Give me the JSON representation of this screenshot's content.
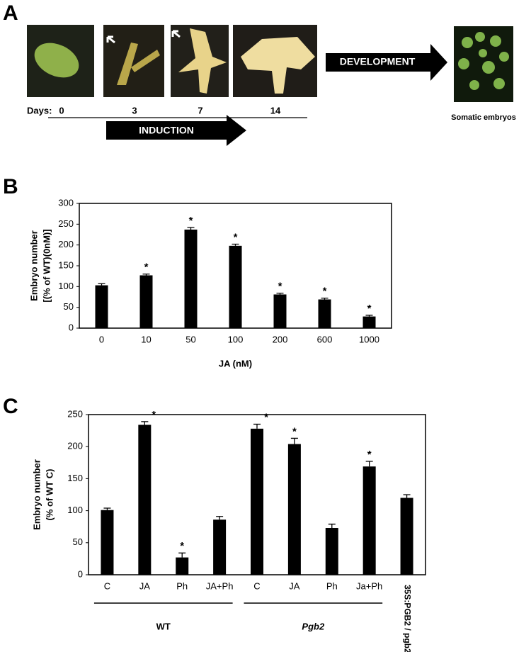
{
  "panel_a": {
    "panel_label": "A",
    "days_label": "Days:",
    "days": [
      "0",
      "3",
      "7",
      "14"
    ],
    "induction": "INDUCTION",
    "development": "DEVELOPMENT",
    "caption": "Somatic embryos"
  },
  "chart_data": [
    {
      "type": "bar",
      "panel_label": "B",
      "ylabel": [
        "Embryo number",
        "[(% of WT)(0nM)]"
      ],
      "xlabel": "JA (nM)",
      "categories": [
        "0",
        "10",
        "50",
        "100",
        "200",
        "600",
        "1000"
      ],
      "values": [
        103,
        127,
        237,
        198,
        81,
        69,
        28
      ],
      "errors": [
        4,
        3,
        5,
        4,
        3,
        3,
        3
      ],
      "significance": [
        null,
        "*",
        "*",
        "*",
        "*",
        "*",
        "*"
      ],
      "color": "#000000",
      "ylim": [
        0,
        300
      ],
      "yticks": [
        0,
        50,
        100,
        150,
        200,
        250,
        300
      ]
    },
    {
      "type": "bar",
      "panel_label": "C",
      "ylabel": [
        "Embryo number",
        "(% of WT C)"
      ],
      "categories": [
        "C",
        "JA",
        "Ph",
        "JA+Ph",
        "C",
        "JA",
        "Ph",
        "Ja+Ph",
        "35S:PGB2 / pgb2"
      ],
      "values": [
        101,
        234,
        27,
        86,
        228,
        204,
        73,
        169,
        120
      ],
      "errors": [
        3,
        5,
        7,
        5,
        7,
        9,
        6,
        8,
        5
      ],
      "significance": [
        null,
        "*",
        "*",
        null,
        "*",
        "*",
        null,
        "*",
        null
      ],
      "groups": [
        "WT",
        "Pgb2"
      ],
      "color": "#000000",
      "ylim": [
        0,
        250
      ],
      "yticks": [
        0,
        50,
        100,
        150,
        200,
        250
      ]
    }
  ]
}
